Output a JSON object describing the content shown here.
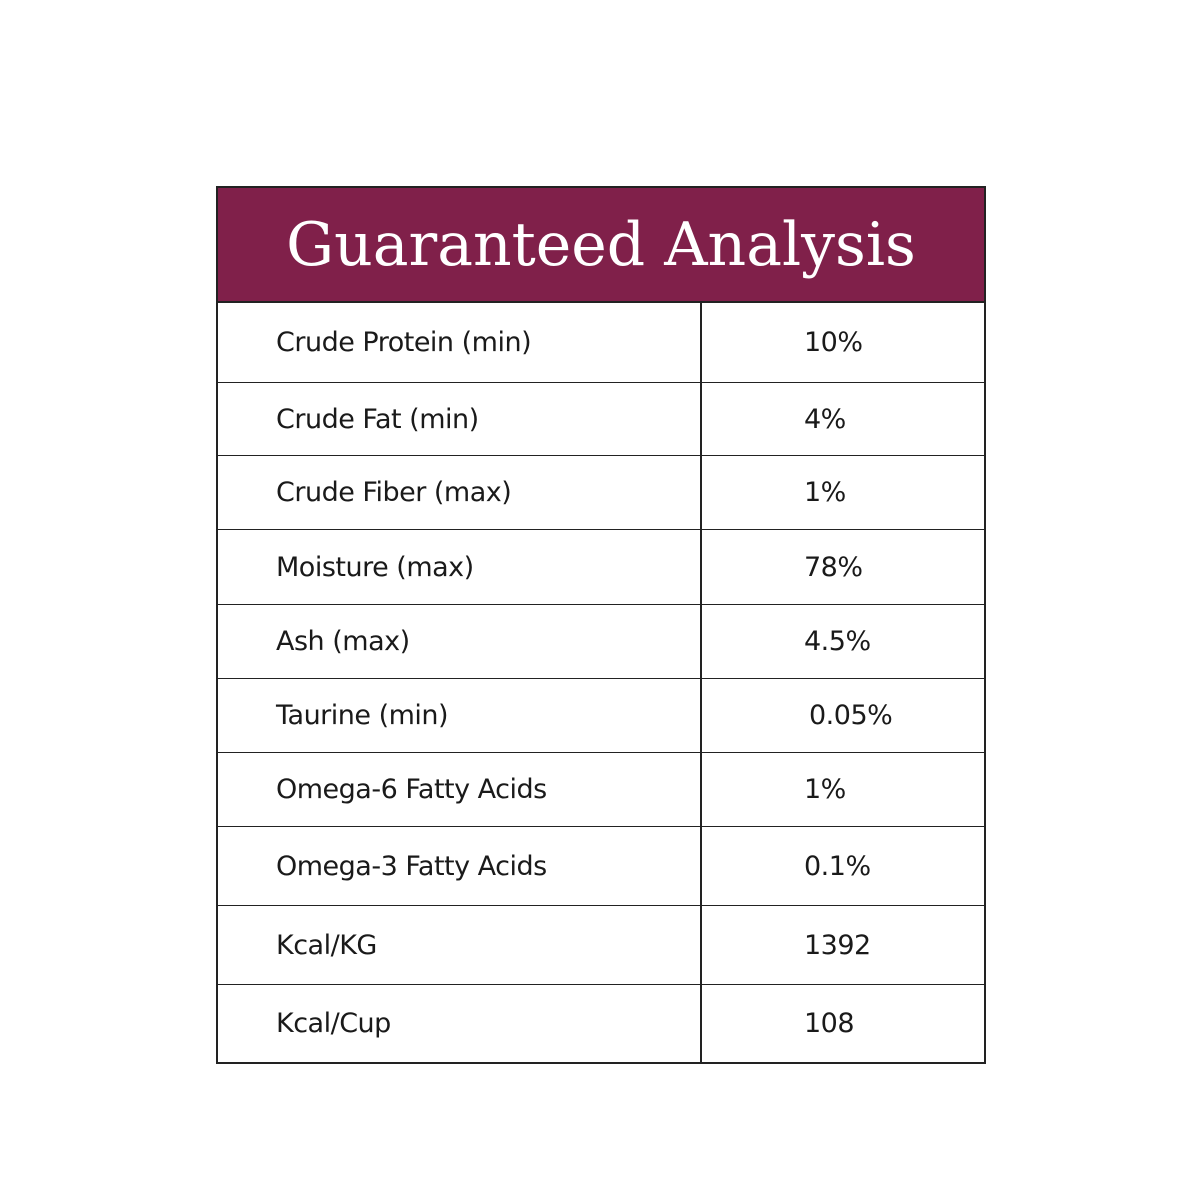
{
  "table": {
    "title": "Guaranteed Analysis",
    "rows": [
      [
        "Crude Protein (min)",
        "10%"
      ],
      [
        "Crude Fat (min)",
        "4%"
      ],
      [
        "Crude Fiber (max)",
        "1%"
      ],
      [
        "Moisture (max)",
        "78%"
      ],
      [
        "Ash (max)",
        "4.5%"
      ],
      [
        "Taurine (min)",
        "0.05%"
      ],
      [
        "Omega-6 Fatty Acids",
        "1%"
      ],
      [
        "Omega-3 Fatty Acids",
        "0.1%"
      ],
      [
        "Kcal/KG",
        "1392"
      ],
      [
        "Kcal/Cup",
        "108"
      ]
    ]
  }
}
